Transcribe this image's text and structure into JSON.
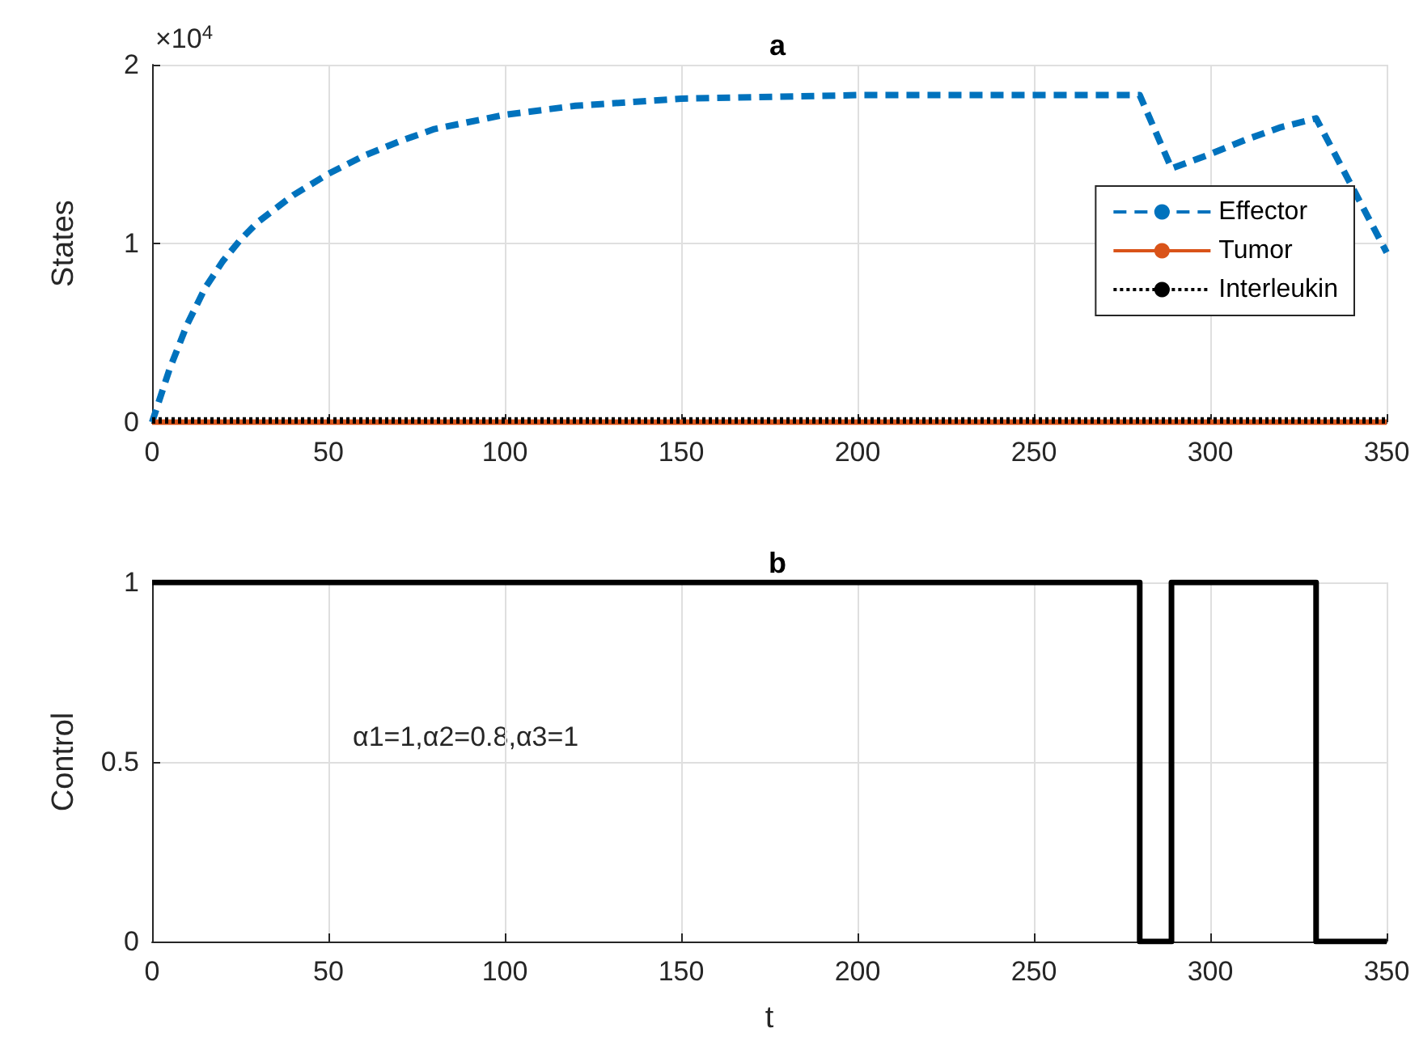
{
  "chart_data": [
    {
      "type": "line",
      "title": "a",
      "ylabel": "States",
      "annotations": [
        "×10$^{4}$"
      ],
      "xlim": [
        0,
        350
      ],
      "xticks": [
        0,
        50,
        100,
        150,
        200,
        250,
        300,
        350
      ],
      "ylim": [
        0,
        2
      ],
      "yticks": [
        0,
        1,
        2
      ],
      "grid": true,
      "legend": "right",
      "marker": "none",
      "series": [
        {
          "name": "Effector",
          "color": "#0072bd",
          "line_style": "dashed",
          "x": [
            0,
            5,
            10,
            15,
            20,
            25,
            30,
            40,
            50,
            60,
            70,
            80,
            100,
            120,
            150,
            200,
            280,
            289,
            300,
            310,
            320,
            330,
            350
          ],
          "values": [
            0,
            0.3,
            0.55,
            0.75,
            0.9,
            1.02,
            1.12,
            1.27,
            1.39,
            1.49,
            1.57,
            1.64,
            1.72,
            1.77,
            1.81,
            1.83,
            1.83,
            1.42,
            1.5,
            1.58,
            1.65,
            1.7,
            0.95
          ]
        },
        {
          "name": "Tumor",
          "color": "#d95319",
          "line_style": "solid",
          "x": [
            0,
            350
          ],
          "values": [
            0,
            0
          ]
        },
        {
          "name": "Interleukin",
          "color": "#000000",
          "line_style": "dotted",
          "x": [
            0,
            350
          ],
          "values": [
            0.01,
            0.01
          ]
        }
      ]
    },
    {
      "type": "line",
      "title": "b",
      "xlabel": "t",
      "ylabel": "Control",
      "annotations": [
        "α1=1,α2=0.8,α3=1"
      ],
      "xlim": [
        0,
        350
      ],
      "xticks": [
        0,
        50,
        100,
        150,
        200,
        250,
        300,
        350
      ],
      "ylim": [
        0,
        1
      ],
      "yticks": [
        0,
        0.5,
        1
      ],
      "grid": true,
      "marker": "none",
      "series": [
        {
          "color": "#000000",
          "line_style": "solid",
          "x": [
            0,
            280,
            280,
            289,
            289,
            330,
            330,
            350
          ],
          "values": [
            1,
            1,
            0,
            0,
            1,
            1,
            0,
            0
          ]
        }
      ]
    }
  ]
}
